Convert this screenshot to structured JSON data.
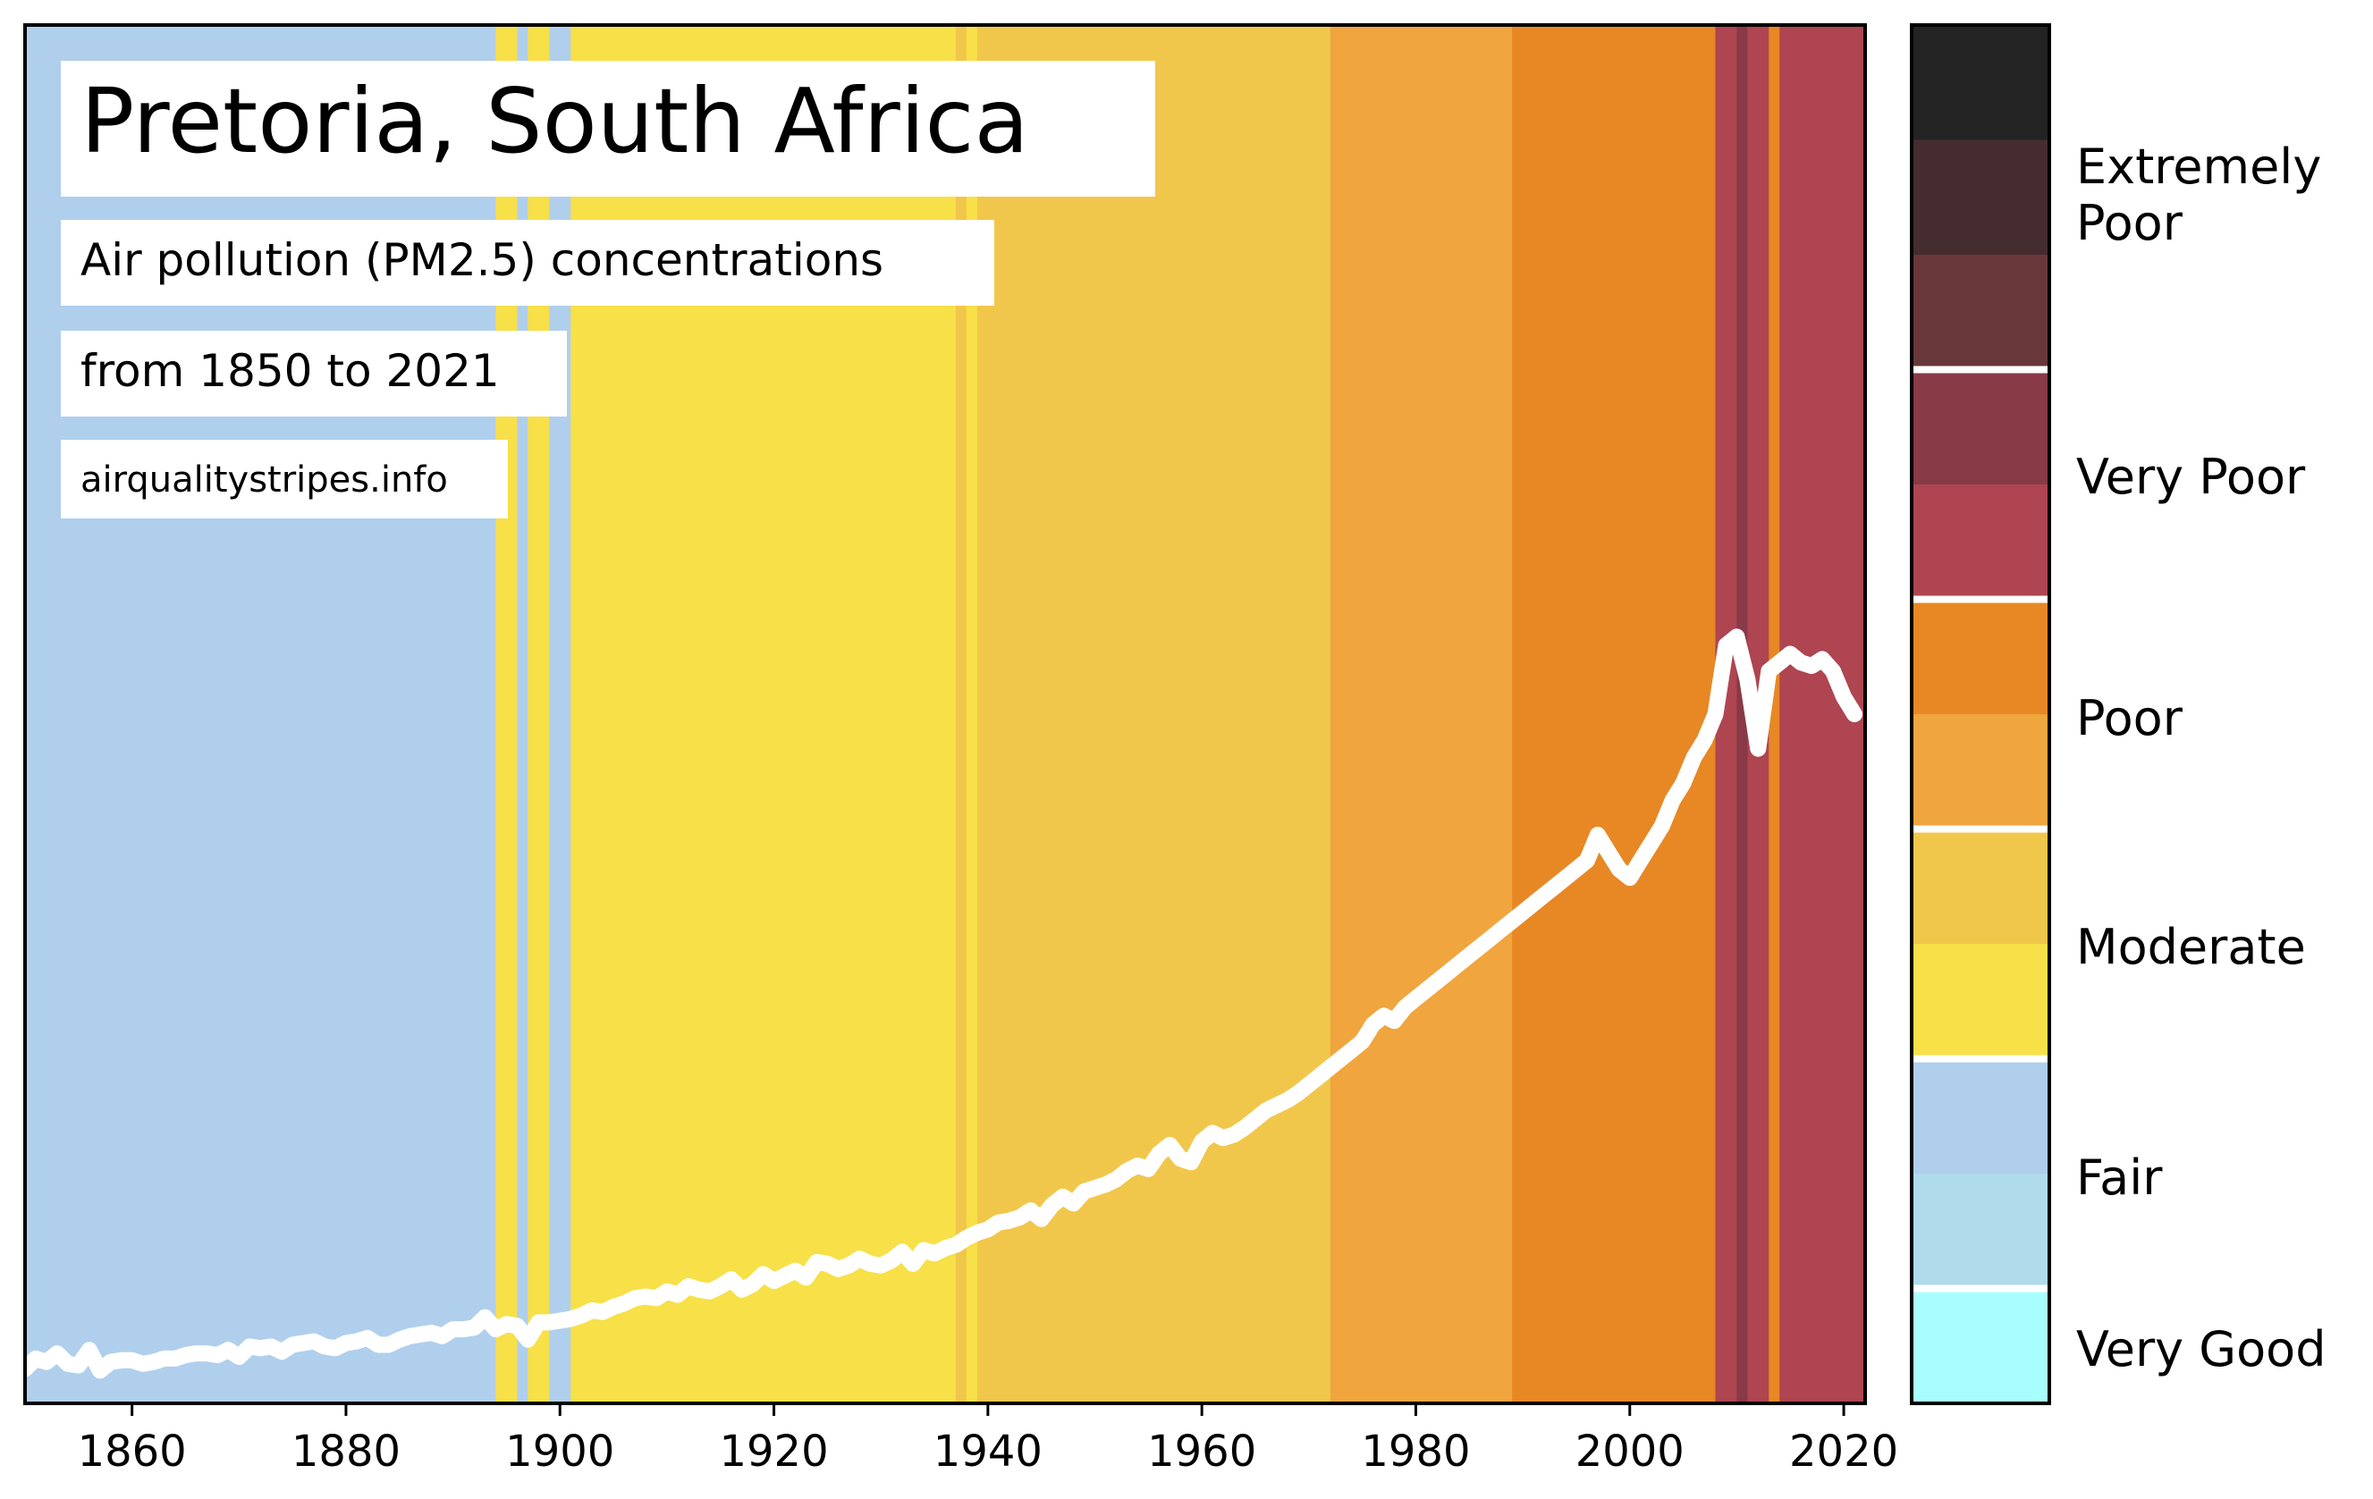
{
  "chart_data": {
    "type": "area",
    "title": "Pretoria, South Africa",
    "subtitle": "Air pollution (PM2.5) concentrations",
    "subtitle2": "from 1850 to 2021",
    "source": "airqualitystripes.info",
    "xlim": [
      1850,
      2022
    ],
    "x_ticks": [
      "1860",
      "1880",
      "1900",
      "1920",
      "1940",
      "1960",
      "1980",
      "2000",
      "2020"
    ],
    "y_hidden": true,
    "grid": false,
    "stripe_colors": {
      "very_good": "#a8feff",
      "fair_light": "#b0dbea",
      "fair": "#b0cfed",
      "moderate": "#f7e048",
      "moderate_dark": "#f1c74b",
      "poor_light": "#f0a53e",
      "poor": "#e78825",
      "very_poor": "#ae4551",
      "very_poor_dark": "#883a46",
      "extremely_poor_light": "#68373a",
      "extremely_poor": "#452d2f",
      "max": "#232323"
    },
    "stripes": [
      {
        "from": 1850,
        "to": 1894,
        "category": "fair"
      },
      {
        "from": 1894,
        "to": 1896,
        "category": "moderate"
      },
      {
        "from": 1896,
        "to": 1897,
        "category": "fair"
      },
      {
        "from": 1897,
        "to": 1899,
        "category": "moderate"
      },
      {
        "from": 1899,
        "to": 1901,
        "category": "fair"
      },
      {
        "from": 1901,
        "to": 1937,
        "category": "moderate"
      },
      {
        "from": 1937,
        "to": 1938,
        "category": "moderate_dark"
      },
      {
        "from": 1938,
        "to": 1939,
        "category": "moderate"
      },
      {
        "from": 1939,
        "to": 1972,
        "category": "moderate_dark"
      },
      {
        "from": 1972,
        "to": 1989,
        "category": "poor_light"
      },
      {
        "from": 1989,
        "to": 2008,
        "category": "poor"
      },
      {
        "from": 2008,
        "to": 2010,
        "category": "very_poor"
      },
      {
        "from": 2010,
        "to": 2011,
        "category": "very_poor_dark"
      },
      {
        "from": 2011,
        "to": 2013,
        "category": "very_poor"
      },
      {
        "from": 2013,
        "to": 2014,
        "category": "poor"
      },
      {
        "from": 2014,
        "to": 2022,
        "category": "very_poor"
      }
    ],
    "series": [
      {
        "x": [
          1850,
          1851,
          1852,
          1853,
          1854,
          1855,
          1856,
          1857,
          1858,
          1859,
          1860,
          1861,
          1862,
          1863,
          1864,
          1865,
          1866,
          1867,
          1868,
          1869,
          1870,
          1871,
          1872,
          1873,
          1874,
          1875,
          1876,
          1877,
          1878,
          1879,
          1880,
          1881,
          1882,
          1883,
          1884,
          1885,
          1886,
          1887,
          1888,
          1889,
          1890,
          1891,
          1892,
          1893,
          1894,
          1895,
          1896,
          1897,
          1898,
          1899,
          1900,
          1901,
          1902,
          1903,
          1904,
          1905,
          1906,
          1907,
          1908,
          1909,
          1910,
          1911,
          1912,
          1913,
          1914,
          1915,
          1916,
          1917,
          1918,
          1919,
          1920,
          1921,
          1922,
          1923,
          1924,
          1925,
          1926,
          1927,
          1928,
          1929,
          1930,
          1931,
          1932,
          1933,
          1934,
          1935,
          1936,
          1937,
          1938,
          1939,
          1940,
          1941,
          1942,
          1943,
          1944,
          1945,
          1946,
          1947,
          1948,
          1949,
          1950,
          1951,
          1952,
          1953,
          1954,
          1955,
          1956,
          1957,
          1958,
          1959,
          1960,
          1961,
          1962,
          1963,
          1964,
          1965,
          1966,
          1967,
          1968,
          1969,
          1970,
          1971,
          1972,
          1973,
          1974,
          1975,
          1976,
          1977,
          1978,
          1979,
          1980,
          1981,
          1982,
          1983,
          1984,
          1985,
          1986,
          1987,
          1988,
          1989,
          1990,
          1991,
          1992,
          1993,
          1994,
          1995,
          1996,
          1997,
          1998,
          1999,
          2000,
          2001,
          2002,
          2003,
          2004,
          2005,
          2006,
          2007,
          2008,
          2009,
          2010,
          2011,
          2012,
          2013,
          2014,
          2015,
          2016,
          2017,
          2018,
          2019,
          2020,
          2021
        ],
        "y": [
          2.0,
          2.6,
          2.4,
          2.9,
          2.3,
          2.2,
          3.1,
          1.9,
          2.4,
          2.5,
          2.5,
          2.3,
          2.4,
          2.6,
          2.6,
          2.8,
          2.9,
          2.9,
          2.8,
          3.1,
          2.7,
          3.3,
          3.2,
          3.3,
          3.0,
          3.4,
          3.5,
          3.6,
          3.3,
          3.2,
          3.5,
          3.6,
          3.8,
          3.4,
          3.4,
          3.7,
          3.9,
          4.0,
          4.1,
          3.9,
          4.3,
          4.3,
          4.4,
          5.0,
          4.3,
          4.6,
          4.5,
          3.7,
          4.7,
          4.7,
          4.8,
          4.9,
          5.1,
          5.4,
          5.3,
          5.6,
          5.8,
          6.1,
          6.2,
          6.1,
          6.5,
          6.3,
          6.8,
          6.6,
          6.5,
          6.8,
          7.2,
          6.6,
          6.9,
          7.5,
          7.1,
          7.4,
          7.7,
          7.3,
          8.2,
          8.1,
          7.8,
          8.0,
          8.4,
          8.1,
          8.0,
          8.3,
          8.8,
          8.1,
          8.9,
          8.7,
          9.0,
          9.2,
          9.6,
          9.9,
          10.1,
          10.5,
          10.6,
          10.8,
          11.2,
          10.7,
          11.5,
          12.0,
          11.6,
          12.3,
          12.5,
          12.7,
          13.0,
          13.5,
          13.8,
          13.6,
          14.5,
          15.0,
          14.2,
          14.0,
          15.2,
          15.7,
          15.4,
          15.6,
          16.0,
          16.5,
          17.0,
          17.3,
          17.6,
          18.0,
          18.5,
          19.0,
          19.5,
          20.0,
          20.5,
          21.0,
          22.0,
          22.5,
          22.2,
          23.0,
          23.5,
          24.0,
          24.5,
          25.0,
          25.5,
          26.0,
          26.5,
          27.0,
          27.5,
          28.0,
          28.5,
          29.0,
          29.5,
          30.0,
          30.5,
          31.0,
          31.5,
          33.0,
          32.0,
          31.0,
          30.5,
          31.5,
          32.5,
          33.5,
          35.0,
          36.0,
          37.5,
          38.5,
          40.0,
          44.0,
          44.5,
          42.0,
          38.0,
          42.5,
          43.0,
          43.5,
          43.0,
          42.8,
          43.2,
          42.5,
          41.0,
          40.0
        ]
      }
    ],
    "legend": {
      "colors": [
        "#232323",
        "#452d2f",
        "#68373a",
        "#883a46",
        "#ae4551",
        "#e78825",
        "#f0a53e",
        "#f1c74b",
        "#f7e048",
        "#b0cfed",
        "#b0dbea",
        "#a8feff"
      ],
      "labels": [
        {
          "text": "Extremely",
          "text2": "Poor"
        },
        {
          "text": "Very Poor"
        },
        {
          "text": "Poor"
        },
        {
          "text": "Moderate"
        },
        {
          "text": "Fair"
        },
        {
          "text": "Very Good"
        }
      ]
    }
  }
}
